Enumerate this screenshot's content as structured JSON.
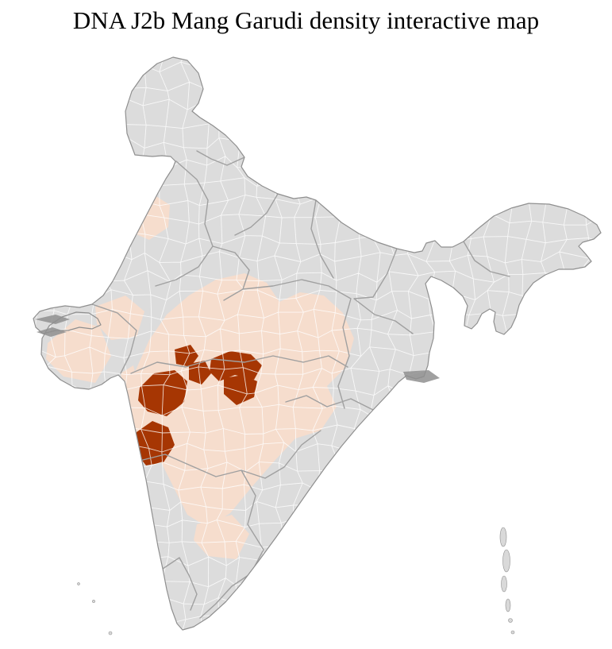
{
  "page": {
    "title": "DNA J2b Mang Garudi density interactive map",
    "background_color": "#ffffff"
  },
  "map": {
    "label": "India district-level density choropleth map",
    "colors": {
      "title_color": "#000000",
      "no_data_fill": "#dcdcdc",
      "low_density_fill": "#f6ddcd",
      "high_density_fill": "#a63603",
      "district_border": "#ffffff",
      "state_border": "#a0a0a0",
      "country_outline": "#8f8f8f",
      "marsh_patch": "#8f8f8f",
      "island_fill": "#d9d9d9"
    }
  }
}
